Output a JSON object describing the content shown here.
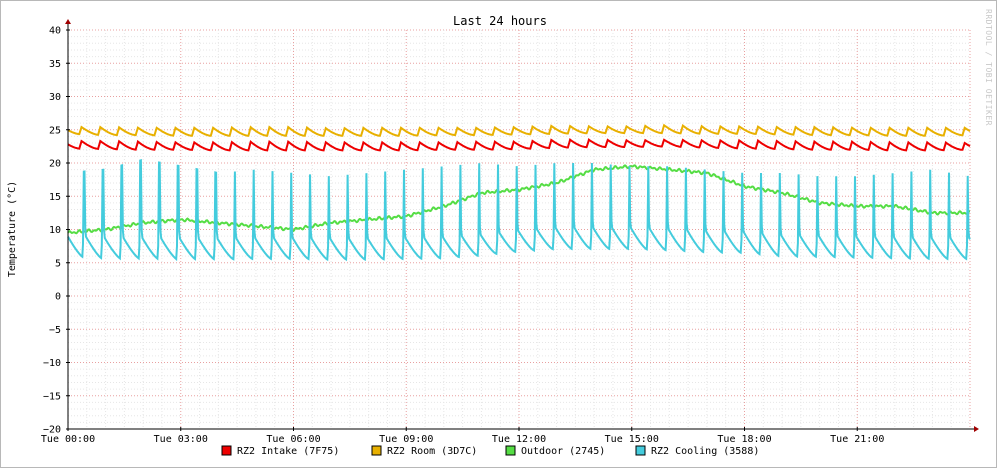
{
  "chart_data": {
    "type": "line",
    "title": "Last 24 hours",
    "ylabel": "Temperature (°C)",
    "xlabel": "",
    "watermark": "RRDTOOL / TOBI OETIKER",
    "ylim": [
      -20,
      40
    ],
    "y_ticks": [
      40,
      35,
      30,
      25,
      20,
      15,
      10,
      5,
      0,
      -5,
      -10,
      -15,
      -20
    ],
    "y_tick_labels": [
      "40",
      "35",
      "30",
      "25",
      "20",
      "15",
      "10",
      "5",
      "0",
      "−5",
      "−10",
      "−15",
      "−20"
    ],
    "x_hours_range": [
      0,
      24
    ],
    "x_ticks": [
      {
        "hour": 0,
        "label": "Tue 00:00"
      },
      {
        "hour": 3,
        "label": "Tue 03:00"
      },
      {
        "hour": 6,
        "label": "Tue 06:00"
      },
      {
        "hour": 9,
        "label": "Tue 09:00"
      },
      {
        "hour": 12,
        "label": "Tue 12:00"
      },
      {
        "hour": 15,
        "label": "Tue 15:00"
      },
      {
        "hour": 18,
        "label": "Tue 18:00"
      },
      {
        "hour": 21,
        "label": "Tue 21:00"
      }
    ],
    "grid": true,
    "legend_position": "bottom",
    "series": [
      {
        "name": "RZ2 Intake (7F75)",
        "color": "#ee0000",
        "x": [
          0,
          1,
          2,
          3,
          4,
          5,
          6,
          7,
          8,
          9,
          10,
          11,
          12,
          13,
          14,
          15,
          16,
          17,
          18,
          19,
          20,
          21,
          22,
          23,
          24
        ],
        "y": [
          23.0,
          22.6,
          22.5,
          22.4,
          22.4,
          22.3,
          22.4,
          22.3,
          22.3,
          22.4,
          22.5,
          22.6,
          22.7,
          22.8,
          22.8,
          22.8,
          22.9,
          22.7,
          22.6,
          22.5,
          22.5,
          22.4,
          22.4,
          22.4,
          22.5
        ],
        "cycle_peaks": [
          23.3,
          23.3,
          23.2,
          23.1,
          23.1,
          23.2,
          23.2,
          23.1,
          23.1,
          23.1,
          23.1,
          23.2,
          23.2,
          23.5,
          23.5,
          23.4,
          23.5,
          23.4,
          23.4,
          23.3,
          23.2,
          23.2,
          23.1,
          23.1,
          23.0
        ],
        "cycle_troughs": [
          22.2,
          22.1,
          22.0,
          22.0,
          21.9,
          21.9,
          21.9,
          21.9,
          21.9,
          21.9,
          22.0,
          22.0,
          22.1,
          22.3,
          22.4,
          22.4,
          22.5,
          22.3,
          22.2,
          22.1,
          22.0,
          22.0,
          21.9,
          21.9,
          22.0
        ]
      },
      {
        "name": "RZ2 Room (3D7C)",
        "color": "#e8b000",
        "x": [
          0,
          1,
          2,
          3,
          4,
          5,
          6,
          7,
          8,
          9,
          10,
          11,
          12,
          13,
          14,
          15,
          16,
          17,
          18,
          19,
          20,
          21,
          22,
          23,
          24
        ],
        "y": [
          24.9,
          24.6,
          24.5,
          24.5,
          24.5,
          24.4,
          24.5,
          24.4,
          24.4,
          24.5,
          24.5,
          24.6,
          24.7,
          24.8,
          24.8,
          24.8,
          24.8,
          24.7,
          24.7,
          24.6,
          24.6,
          24.5,
          24.5,
          24.5,
          24.6
        ],
        "cycle_peaks": [
          25.4,
          25.4,
          25.3,
          25.3,
          25.3,
          25.4,
          25.4,
          25.2,
          25.3,
          25.3,
          25.3,
          25.3,
          25.4,
          25.6,
          25.5,
          25.5,
          25.7,
          25.5,
          25.5,
          25.4,
          25.4,
          25.3,
          25.3,
          25.3,
          25.3
        ],
        "cycle_troughs": [
          24.4,
          24.2,
          24.2,
          24.1,
          24.1,
          24.1,
          24.1,
          24.1,
          24.1,
          24.1,
          24.2,
          24.2,
          24.3,
          24.4,
          24.5,
          24.5,
          24.5,
          24.4,
          24.4,
          24.3,
          24.2,
          24.2,
          24.1,
          24.1,
          24.2
        ]
      },
      {
        "name": "Outdoor (2745)",
        "color": "#55dd44",
        "x": [
          0,
          1,
          2,
          3,
          4,
          5,
          6,
          7,
          8,
          9,
          10,
          11,
          12,
          13,
          14,
          15,
          16,
          17,
          18,
          19,
          20,
          21,
          22,
          23,
          24
        ],
        "y": [
          9.5,
          10.0,
          11.0,
          11.5,
          11.0,
          10.5,
          10.0,
          11.0,
          11.5,
          12.0,
          13.5,
          15.5,
          16.0,
          17.0,
          19.0,
          19.5,
          19.0,
          18.5,
          16.5,
          15.5,
          14.0,
          13.5,
          13.5,
          12.5,
          12.5
        ]
      },
      {
        "name": "RZ2 Cooling (3588)",
        "color": "#44ccdd",
        "x": [
          0,
          1,
          2,
          3,
          4,
          5,
          6,
          7,
          8,
          9,
          10,
          11,
          12,
          13,
          14,
          15,
          16,
          17,
          18,
          19,
          20,
          21,
          22,
          23,
          24
        ],
        "y": [
          6.0,
          5.6,
          5.6,
          5.5,
          5.5,
          5.6,
          5.6,
          5.5,
          5.5,
          5.6,
          5.7,
          6.1,
          6.7,
          7.1,
          7.1,
          7.1,
          6.9,
          6.6,
          6.5,
          6.0,
          5.9,
          5.8,
          5.7,
          5.6,
          5.6
        ],
        "cycle_peaks": [
          18.5,
          19.0,
          20.5,
          19.5,
          18.5,
          19.0,
          18.5,
          18.0,
          18.5,
          19.0,
          19.5,
          20.0,
          19.5,
          20.0,
          20.0,
          19.5,
          19.5,
          19.0,
          18.5,
          18.5,
          18.0,
          18.0,
          18.5,
          19.0,
          18.0
        ]
      }
    ]
  }
}
